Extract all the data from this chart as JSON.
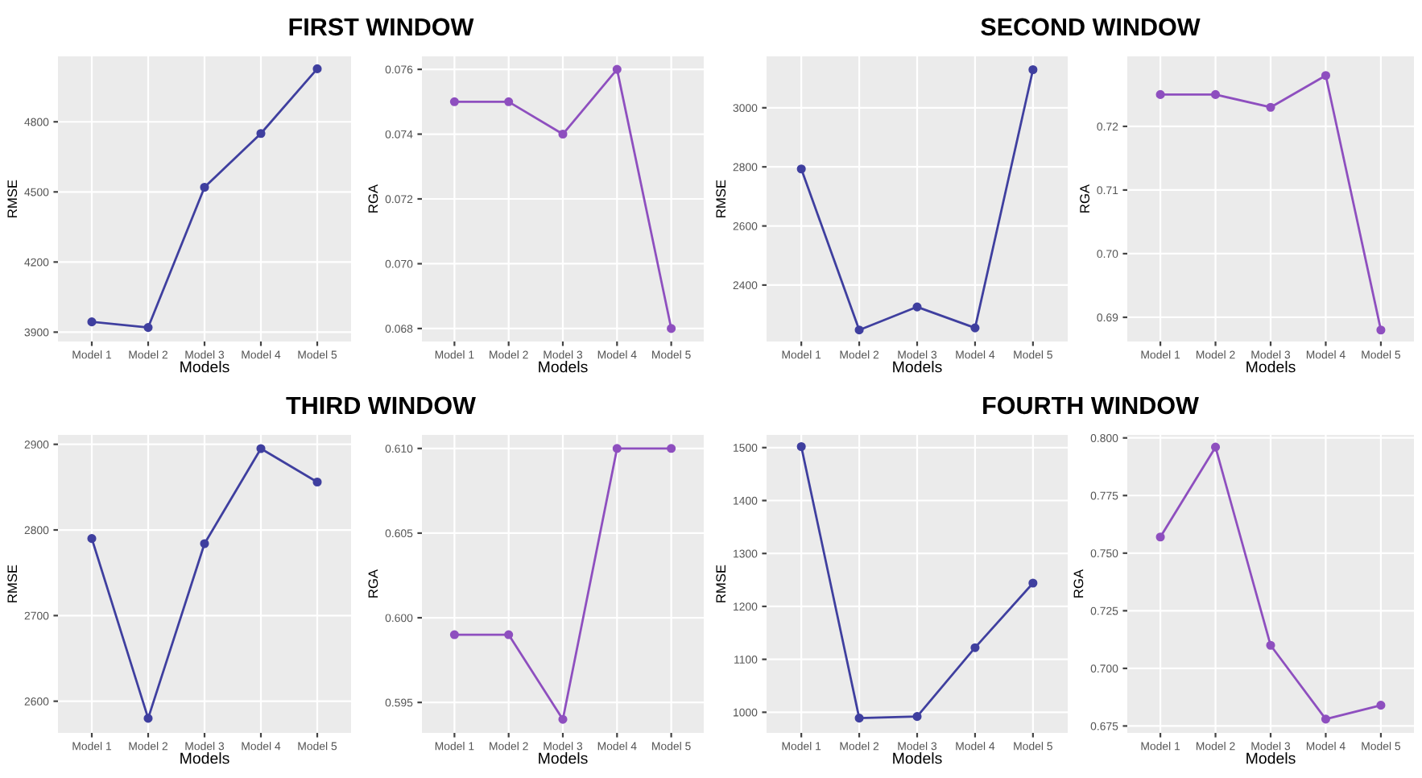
{
  "chart_data": [
    {
      "type": "line",
      "title": "FIRST WINDOW",
      "xlabel": "Models",
      "ylabel": "RMSE",
      "categories": [
        "Model 1",
        "Model 2",
        "Model 3",
        "Model 4",
        "Model 5"
      ],
      "series": [
        {
          "color": "#3f3f9f",
          "values": [
            3944,
            3920,
            4520,
            4750,
            5027
          ]
        }
      ],
      "ylim": [
        3860,
        5080
      ],
      "yticks": [
        3900,
        4200,
        4500,
        4800
      ],
      "grid": true,
      "marker": "circle",
      "line_style": "solid"
    },
    {
      "type": "line",
      "xlabel": "Models",
      "ylabel": "RGA",
      "categories": [
        "Model 1",
        "Model 2",
        "Model 3",
        "Model 4",
        "Model 5"
      ],
      "series": [
        {
          "color": "#8e4fbf",
          "values": [
            0.075,
            0.075,
            0.074,
            0.076,
            0.068
          ]
        }
      ],
      "ylim": [
        0.0676,
        0.0764
      ],
      "yticks": [
        {
          "value": 0.068,
          "label": "0.068"
        },
        {
          "value": 0.07,
          "label": "0.070"
        },
        {
          "value": 0.072,
          "label": "0.072"
        },
        {
          "value": 0.074,
          "label": "0.074"
        },
        {
          "value": 0.076,
          "label": "0.076"
        }
      ],
      "grid": true,
      "marker": "circle",
      "line_style": "solid"
    },
    {
      "type": "line",
      "title": "SECOND WINDOW",
      "xlabel": "Models",
      "ylabel": "RMSE",
      "categories": [
        "Model 1",
        "Model 2",
        "Model 3",
        "Model 4",
        "Model 5"
      ],
      "series": [
        {
          "color": "#3f3f9f",
          "values": [
            2793,
            2248,
            2326,
            2255,
            3129
          ]
        }
      ],
      "ylim": [
        2209,
        3174
      ],
      "yticks": [
        2400,
        2600,
        2800,
        3000
      ],
      "grid": true,
      "marker": "circle",
      "line_style": "solid"
    },
    {
      "type": "line",
      "xlabel": "Models",
      "ylabel": "RGA",
      "categories": [
        "Model 1",
        "Model 2",
        "Model 3",
        "Model 4",
        "Model 5"
      ],
      "series": [
        {
          "color": "#8e4fbf",
          "values": [
            0.725,
            0.725,
            0.723,
            0.728,
            0.688
          ]
        }
      ],
      "ylim": [
        0.6862,
        0.731
      ],
      "yticks": [
        {
          "value": 0.69,
          "label": "0.69"
        },
        {
          "value": 0.7,
          "label": "0.70"
        },
        {
          "value": 0.71,
          "label": "0.71"
        },
        {
          "value": 0.72,
          "label": "0.72"
        }
      ],
      "grid": true,
      "marker": "circle",
      "line_style": "solid"
    },
    {
      "type": "line",
      "title": "THIRD WINDOW",
      "xlabel": "Models",
      "ylabel": "RMSE",
      "categories": [
        "Model 1",
        "Model 2",
        "Model 3",
        "Model 4",
        "Model 5"
      ],
      "series": [
        {
          "color": "#3f3f9f",
          "values": [
            2790,
            2580,
            2784,
            2895,
            2856
          ]
        }
      ],
      "ylim": [
        2563,
        2911
      ],
      "yticks": [
        2600,
        2700,
        2800,
        2900
      ],
      "grid": true,
      "marker": "circle",
      "line_style": "solid"
    },
    {
      "type": "line",
      "xlabel": "Models",
      "ylabel": "RGA",
      "categories": [
        "Model 1",
        "Model 2",
        "Model 3",
        "Model 4",
        "Model 5"
      ],
      "series": [
        {
          "color": "#8e4fbf",
          "values": [
            0.599,
            0.599,
            0.594,
            0.61,
            0.61
          ]
        }
      ],
      "ylim": [
        0.5932,
        0.6108
      ],
      "yticks": [
        {
          "value": 0.595,
          "label": "0.595"
        },
        {
          "value": 0.6,
          "label": "0.600"
        },
        {
          "value": 0.605,
          "label": "0.605"
        },
        {
          "value": 0.61,
          "label": "0.610"
        }
      ],
      "grid": true,
      "marker": "circle",
      "line_style": "solid"
    },
    {
      "type": "line",
      "title": "FOURTH WINDOW",
      "xlabel": "Models",
      "ylabel": "RMSE",
      "categories": [
        "Model 1",
        "Model 2",
        "Model 3",
        "Model 4",
        "Model 5"
      ],
      "series": [
        {
          "color": "#3f3f9f",
          "values": [
            1502,
            989,
            992,
            1122,
            1244
          ]
        }
      ],
      "ylim": [
        961,
        1524
      ],
      "yticks": [
        1000,
        1100,
        1200,
        1300,
        1400,
        1500
      ],
      "grid": true,
      "marker": "circle",
      "line_style": "solid"
    },
    {
      "type": "line",
      "xlabel": "Models",
      "ylabel": "RGA",
      "categories": [
        "Model 1",
        "Model 2",
        "Model 3",
        "Model 4",
        "Model 5"
      ],
      "series": [
        {
          "color": "#8e4fbf",
          "values": [
            0.757,
            0.796,
            0.71,
            0.678,
            0.684
          ]
        }
      ],
      "ylim": [
        0.672,
        0.8013
      ],
      "yticks": [
        {
          "value": 0.675,
          "label": "0.675"
        },
        {
          "value": 0.7,
          "label": "0.700"
        },
        {
          "value": 0.725,
          "label": "0.725"
        },
        {
          "value": 0.75,
          "label": "0.750"
        },
        {
          "value": 0.775,
          "label": "0.775"
        },
        {
          "value": 0.8,
          "label": "0.800"
        }
      ],
      "grid": true,
      "marker": "circle",
      "line_style": "solid"
    }
  ]
}
